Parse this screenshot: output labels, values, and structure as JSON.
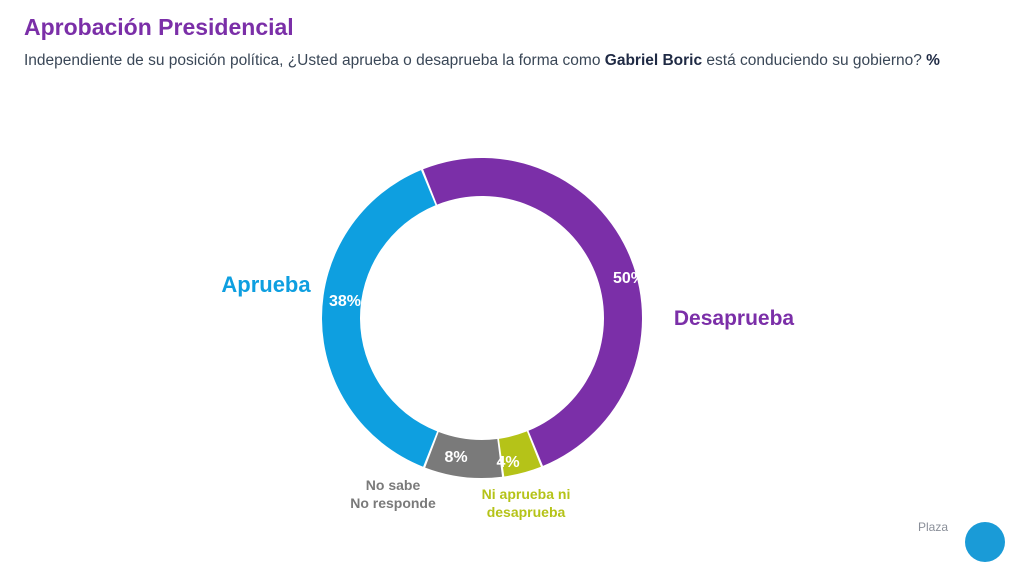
{
  "header": {
    "title": "Aprobación Presidencial",
    "subtitle_pre": "Independiente de su posición política, ¿Usted aprueba o desaprueba la forma como ",
    "subtitle_name": "Gabriel Boric",
    "subtitle_post": " está conduciendo su gobierno? ",
    "subtitle_unit": "%"
  },
  "chart_data": {
    "type": "pie",
    "donut": true,
    "categories": [
      "Desaprueba",
      "Ni aprueba ni desaprueba",
      "No sabe No responde",
      "Aprueba"
    ],
    "values": [
      50,
      4,
      8,
      38
    ],
    "value_labels": [
      "50%",
      "4%",
      "8%",
      "38%"
    ],
    "category_label_lines": [
      [
        "Desaprueba"
      ],
      [
        "Ni aprueba ni",
        "desaprueba"
      ],
      [
        "No sabe",
        "No responde"
      ],
      [
        "Aprueba"
      ]
    ],
    "colors": [
      "#7b2fa8",
      "#b5c318",
      "#7a7a7a",
      "#0e9fe0"
    ],
    "category_label_colors": [
      "#7b2fa8",
      "#b5c318",
      "#7a7a7a",
      "#0e9fe0"
    ]
  },
  "footer": {
    "logo_text": "Plaza"
  }
}
